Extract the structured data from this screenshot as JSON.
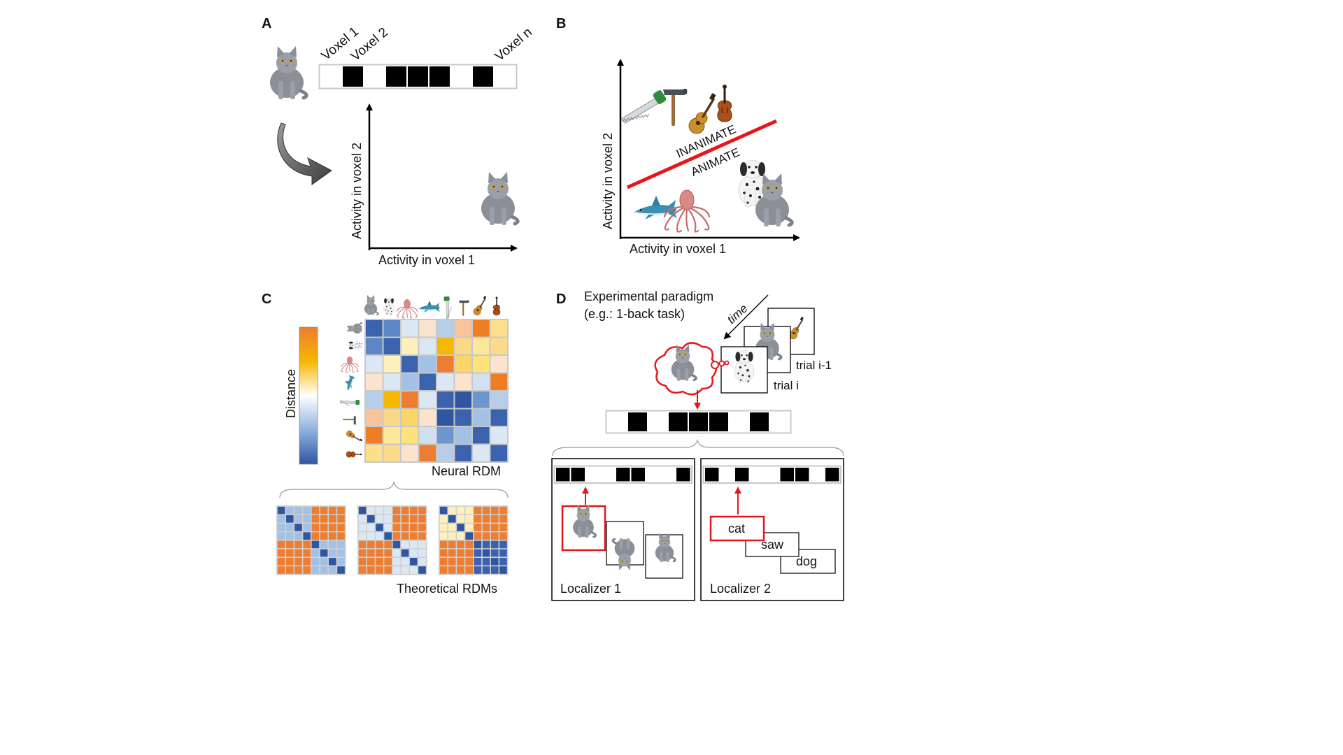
{
  "panel_labels": [
    "A",
    "B",
    "C",
    "D"
  ],
  "panel_a": {
    "voxel_labels": [
      "Voxel 1",
      "Voxel 2",
      "Voxel n"
    ],
    "voxel_pattern": [
      0,
      1,
      0,
      1,
      1,
      1,
      0,
      1,
      0
    ],
    "xlabel": "Activity in voxel  1",
    "ylabel": "Activity in voxel  2"
  },
  "panel_b": {
    "xlabel": "Activity in voxel  1",
    "ylabel": "Activity in voxel  2",
    "upper_label": "INANIMATE",
    "lower_label": "ANIMATE",
    "boundary_color": "#e8161b",
    "inanimate_items": [
      "saw-icon",
      "hammer-icon",
      "guitar-icon",
      "violin-icon"
    ],
    "animate_items": [
      "shark-icon",
      "octopus-icon",
      "dog-icon",
      "cat-icon"
    ]
  },
  "panel_c": {
    "colorbar_label": "Distance",
    "neural_rdm_label": "Neural RDM",
    "theoretical_label": "Theoretical RDMs",
    "items": [
      "cat-icon",
      "dog-icon",
      "octopus-icon",
      "shark-icon",
      "saw-icon",
      "hammer-icon",
      "guitar-icon",
      "violin-icon"
    ],
    "rdm_colors": [
      [
        "#3a62ad",
        "#5c86c6",
        "#dce7f4",
        "#fbe3cd",
        "#b8cee8",
        "#f8c49c",
        "#ef7e22",
        "#fde08c"
      ],
      [
        "#5c86c6",
        "#3a62ad",
        "#fdf0bd",
        "#dce7f4",
        "#f6b700",
        "#fbd98a",
        "#fbe89a",
        "#fdd98a"
      ],
      [
        "#dce7f4",
        "#fdf0bd",
        "#3a62ad",
        "#a3c1e4",
        "#ed7d31",
        "#fbd56a",
        "#fde27d",
        "#fbe3cd"
      ],
      [
        "#fbe3cd",
        "#dce7f4",
        "#a3c1e4",
        "#3a62ad",
        "#dce7f4",
        "#fbe3cd",
        "#d2e1f2",
        "#ef7e22"
      ],
      [
        "#b8cee8",
        "#f6b700",
        "#ed7d31",
        "#dce7f4",
        "#3a62ad",
        "#2f56a0",
        "#6d96cf",
        "#b8cee8"
      ],
      [
        "#f8c49c",
        "#fbd98a",
        "#fbd56a",
        "#fbe3cd",
        "#2f56a0",
        "#3a62ad",
        "#a3c1e4",
        "#3a62ad"
      ],
      [
        "#ef7e22",
        "#fbe89a",
        "#fde27d",
        "#d2e1f2",
        "#6d96cf",
        "#a3c1e4",
        "#3a62ad",
        "#dce7f4"
      ],
      [
        "#fde08c",
        "#fdd98a",
        "#fbe3cd",
        "#ed7d31",
        "#b8cee8",
        "#3a62ad",
        "#dce7f4",
        "#3a62ad"
      ]
    ],
    "theoretical_rdms": [
      {
        "diag": "#2f56a0",
        "within": "#a3c1e4",
        "between": "#ed7d31",
        "within_b": "#a3c1e4"
      },
      {
        "diag": "#2f56a0",
        "within": "#dce7f4",
        "between": "#ed7d31",
        "within_b": "#dce7f4"
      },
      {
        "diag": "#2f56a0",
        "within": "#fdf0bd",
        "between": "#ed7d31",
        "within_b": "#3a62ad"
      }
    ]
  },
  "panel_d": {
    "title_line1": "Experimental paradigm",
    "title_line2": "(e.g.: 1-back task)",
    "time_label": "time",
    "trial_current": "trial i",
    "trial_previous": "trial i-1",
    "voxel_pattern": [
      0,
      1,
      0,
      1,
      1,
      1,
      0,
      1,
      0
    ],
    "localizer1": {
      "label": "Localizer 1",
      "voxel_pattern": [
        1,
        1,
        0,
        0,
        1,
        1,
        0,
        0,
        1
      ]
    },
    "localizer2": {
      "label": "Localizer 2",
      "voxel_pattern": [
        1,
        0,
        1,
        0,
        0,
        1,
        1,
        0,
        1
      ],
      "words": [
        "cat",
        "saw",
        "dog"
      ]
    },
    "accent_color": "#e8161b"
  }
}
